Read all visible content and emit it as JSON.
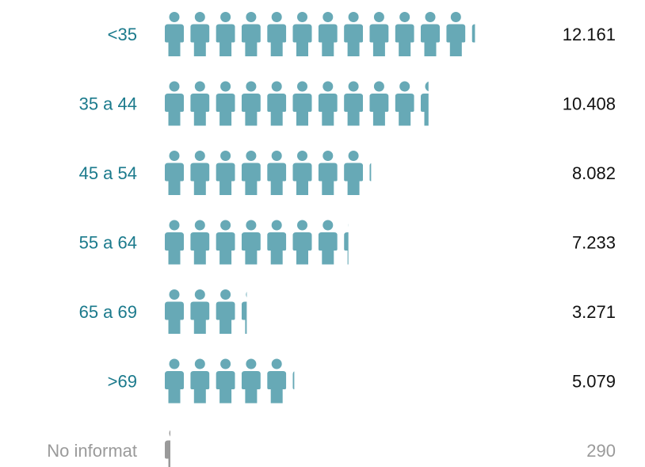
{
  "chart_data": {
    "type": "pictogram",
    "unit_value": 1000,
    "categories": [
      "<35",
      "35 a 44",
      "45 a 54",
      "55 a 64",
      "65 a 69",
      ">69",
      "No informat"
    ],
    "values": [
      12161,
      10408,
      8082,
      7233,
      3271,
      5079,
      290
    ],
    "value_labels": [
      "12.161",
      "10.408",
      "8.082",
      "7.233",
      "3.271",
      "5.079",
      "290"
    ],
    "title": "",
    "xlabel": "",
    "ylabel": "",
    "grid": false,
    "legend": "none",
    "icon": "person-icon",
    "colors": {
      "icon": "#67a9b6",
      "category_label": "#1b7a8c",
      "value_label": "#111111",
      "muted_icon": "#9a9a9a",
      "muted_label": "#9a9a9a"
    },
    "muted_categories": [
      "No informat"
    ]
  }
}
